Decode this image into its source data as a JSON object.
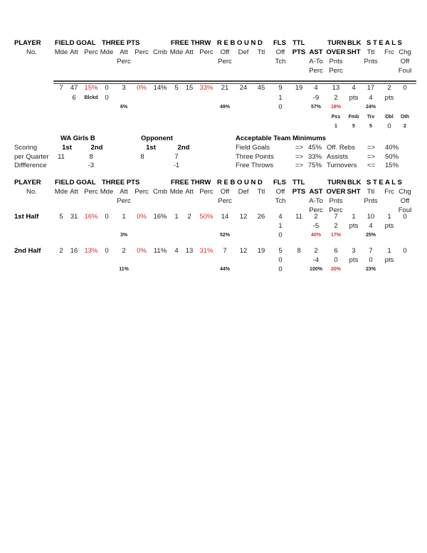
{
  "header": {
    "groups": [
      "PLAYER",
      "FIELD GOAL",
      "THREE PTS",
      "FREE THRW",
      "R E B O U N D",
      "FLS",
      "TTL",
      "TURN",
      "BLK",
      "S T E A L S"
    ],
    "player_no": "No.",
    "rows": [
      [
        "Mde",
        "Att",
        "Perc",
        "Mde",
        "Att",
        "Perc",
        "Cmb",
        "Mde",
        "Att",
        "Perc",
        "Off",
        "Def",
        "Ttl",
        "Off",
        "PTS",
        "AST",
        "OVER",
        "SHT",
        "Ttl",
        "Frc",
        "Chg"
      ],
      [
        "",
        "",
        "",
        "",
        "Perc",
        "",
        "",
        "",
        "",
        "",
        "Perc",
        "",
        "",
        "Tch",
        "",
        "A-To",
        "Pnts",
        "",
        "Pnts",
        "",
        "Off"
      ],
      [
        "",
        "",
        "",
        "",
        "",
        "",
        "",
        "",
        "",
        "",
        "",
        "",
        "",
        "",
        "",
        "Perc",
        "Perc",
        "",
        "",
        "",
        "Foul"
      ]
    ]
  },
  "team_totals": {
    "rows": [
      {
        "cells": [
          "7",
          "47",
          "15%",
          "0",
          "3",
          "0%",
          "14%",
          "5",
          "15",
          "33%",
          "21",
          "24",
          "45",
          "9",
          "19",
          "4",
          "13",
          "4",
          "17",
          "2",
          "0"
        ],
        "red": [
          2,
          5,
          9
        ]
      },
      {
        "cells": [
          "",
          "6",
          "Blckd",
          "0",
          "",
          "",
          "",
          "",
          "",
          "",
          "",
          "",
          "",
          "1",
          "",
          "-9",
          "2",
          "pts",
          "4",
          "pts",
          ""
        ],
        "red": []
      },
      {
        "cells": [
          "",
          "",
          "",
          "",
          "6%",
          "",
          "",
          "",
          "",
          "",
          "49%",
          "",
          "",
          "0",
          "",
          "57%",
          "18%",
          "",
          "24%",
          "",
          ""
        ],
        "red": [
          16
        ],
        "small": true
      },
      {
        "cells": [
          "",
          "",
          "",
          "",
          "",
          "",
          "",
          "",
          "",
          "",
          "",
          "",
          "",
          "",
          "",
          "",
          "Pss",
          "Fmb",
          "Trv",
          "Dbl",
          "Oth"
        ],
        "red": [],
        "small": true
      },
      {
        "cells": [
          "",
          "",
          "",
          "",
          "",
          "",
          "",
          "",
          "",
          "",
          "",
          "",
          "",
          "",
          "",
          "",
          "1",
          "5",
          "5",
          "0",
          "2"
        ],
        "red": [],
        "small": true
      }
    ]
  },
  "scoring": {
    "team": "WA Girls B",
    "opponent": "Opponent",
    "labels": [
      "Scoring",
      "per Quarter",
      "Diffference"
    ],
    "periods": [
      "1st",
      "2nd",
      "1st",
      "2nd"
    ],
    "team_scores": [
      "11",
      "8"
    ],
    "team_diff": "-3",
    "opp_scores": [
      "8",
      "7"
    ],
    "opp_diff": "-1"
  },
  "minimums": {
    "title": "Acceptable Team Minimums",
    "rows": [
      [
        "Field Goals",
        "=>",
        "45%",
        "Off. Rebs",
        "=>",
        "40%"
      ],
      [
        "Three Points",
        "=>",
        "33%",
        "Assists",
        "=>",
        "50%"
      ],
      [
        "Free Throws",
        "=>",
        "75%",
        "Turnovers",
        "<=",
        "15%"
      ]
    ]
  },
  "halves": [
    {
      "label": "1st Half",
      "rows": [
        {
          "cells": [
            "5",
            "31",
            "16%",
            "0",
            "1",
            "0%",
            "16%",
            "1",
            "2",
            "50%",
            "14",
            "12",
            "26",
            "4",
            "11",
            "2",
            "7",
            "1",
            "10",
            "1",
            "0"
          ],
          "red": [
            2,
            5,
            9
          ]
        },
        {
          "cells": [
            "",
            "",
            "",
            "",
            "",
            "",
            "",
            "",
            "",
            "",
            "",
            "",
            "",
            "1",
            "",
            "-5",
            "2",
            "pts",
            "4",
            "pts",
            ""
          ],
          "red": []
        },
        {
          "cells": [
            "",
            "",
            "",
            "",
            "3%",
            "",
            "",
            "",
            "",
            "",
            "52%",
            "",
            "",
            "0",
            "",
            "40%",
            "17%",
            "",
            "25%",
            "",
            ""
          ],
          "red": [
            15,
            16
          ],
          "small": true
        }
      ]
    },
    {
      "label": "2nd Half",
      "rows": [
        {
          "cells": [
            "2",
            "16",
            "13%",
            "0",
            "2",
            "0%",
            "11%",
            "4",
            "13",
            "31%",
            "7",
            "12",
            "19",
            "5",
            "8",
            "2",
            "6",
            "3",
            "7",
            "1",
            "0"
          ],
          "red": [
            2,
            5,
            9
          ]
        },
        {
          "cells": [
            "",
            "",
            "",
            "",
            "",
            "",
            "",
            "",
            "",
            "",
            "",
            "",
            "",
            "0",
            "",
            "-4",
            "0",
            "pts",
            "0",
            "pts",
            ""
          ],
          "red": []
        },
        {
          "cells": [
            "",
            "",
            "",
            "",
            "11%",
            "",
            "",
            "",
            "",
            "",
            "44%",
            "",
            "",
            "0",
            "",
            "100%",
            "20%",
            "",
            "23%",
            "",
            ""
          ],
          "red": [
            16
          ],
          "small": true
        }
      ]
    }
  ],
  "colors": {
    "highlight": "#d03030",
    "text": "#222222"
  }
}
